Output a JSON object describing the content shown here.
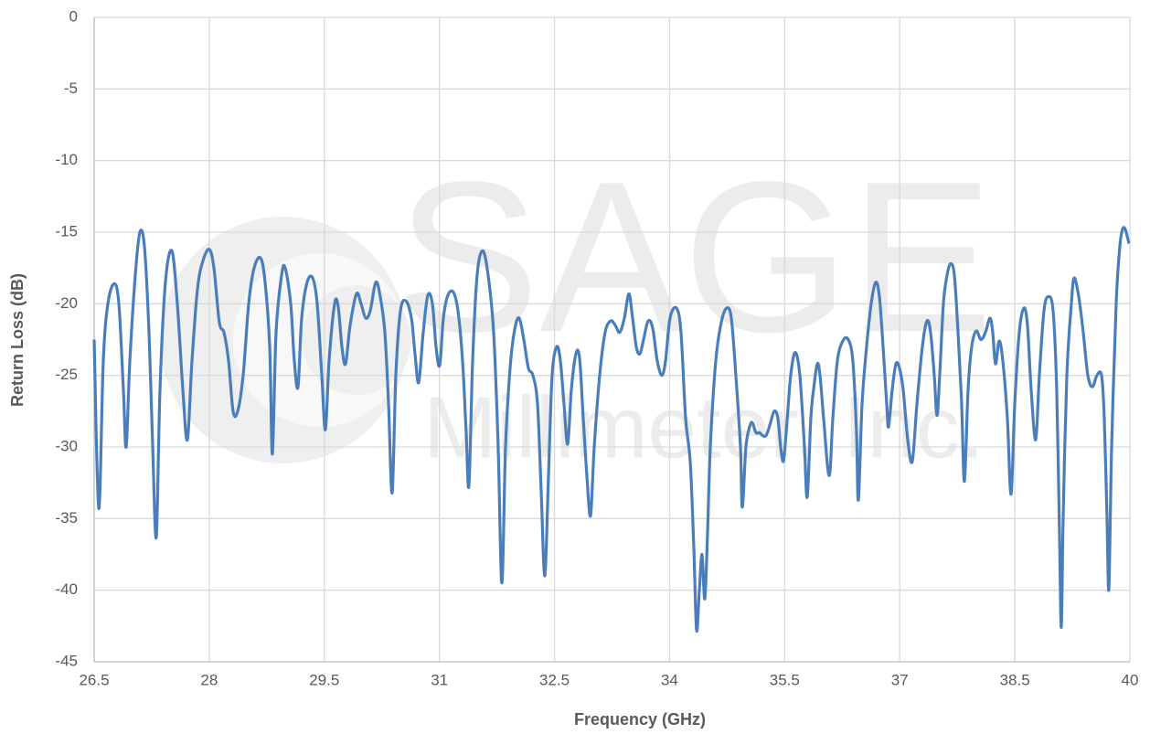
{
  "chart_data": {
    "type": "line",
    "watermark": [
      "SAGE",
      "Millimeter, Inc."
    ],
    "x_label": "Frequency (GHz)",
    "y_label": "Return Loss (dB)",
    "xlim": [
      26.5,
      40
    ],
    "xticks": [
      26.5,
      28,
      29.5,
      31,
      32.5,
      34,
      35.5,
      37,
      38.5,
      40
    ],
    "ylim": [
      -45,
      0
    ],
    "yticks": [
      0,
      -5,
      -10,
      -15,
      -20,
      -25,
      -30,
      -35,
      -40,
      -45
    ],
    "grid": true,
    "series": [
      {
        "color": "#4a7ebb",
        "x": [
          26.5,
          26.56,
          26.619,
          26.679,
          26.762,
          26.822,
          26.881,
          26.917,
          26.965,
          27.036,
          27.096,
          27.155,
          27.215,
          27.263,
          27.31,
          27.358,
          27.429,
          27.513,
          27.584,
          27.656,
          27.715,
          27.775,
          27.846,
          27.918,
          28.001,
          28.061,
          28.132,
          28.192,
          28.252,
          28.311,
          28.371,
          28.442,
          28.514,
          28.585,
          28.669,
          28.728,
          28.788,
          28.823,
          28.871,
          28.943,
          28.99,
          29.062,
          29.109,
          29.157,
          29.205,
          29.276,
          29.348,
          29.407,
          29.467,
          29.514,
          29.562,
          29.634,
          29.681,
          29.729,
          29.777,
          29.836,
          29.92,
          29.979,
          30.039,
          30.098,
          30.17,
          30.229,
          30.289,
          30.337,
          30.384,
          30.432,
          30.492,
          30.563,
          30.635,
          30.682,
          30.73,
          30.789,
          30.849,
          30.909,
          30.956,
          31.004,
          31.052,
          31.111,
          31.183,
          31.242,
          31.302,
          31.349,
          31.385,
          31.433,
          31.492,
          31.564,
          31.635,
          31.707,
          31.766,
          31.814,
          31.862,
          31.921,
          31.981,
          32.04,
          32.1,
          32.16,
          32.219,
          32.279,
          32.326,
          32.374,
          32.422,
          32.469,
          32.529,
          32.577,
          32.624,
          32.672,
          32.72,
          32.779,
          32.827,
          32.875,
          32.922,
          32.97,
          33.018,
          33.089,
          33.16,
          33.232,
          33.292,
          33.351,
          33.411,
          33.47,
          33.518,
          33.566,
          33.613,
          33.661,
          33.72,
          33.78,
          33.84,
          33.899,
          33.947,
          34.006,
          34.09,
          34.149,
          34.209,
          34.269,
          34.316,
          34.352,
          34.388,
          34.423,
          34.459,
          34.495,
          34.531,
          34.602,
          34.674,
          34.745,
          34.805,
          34.864,
          34.924,
          34.948,
          34.995,
          35.043,
          35.079,
          35.126,
          35.174,
          35.21,
          35.258,
          35.305,
          35.365,
          35.412,
          35.448,
          35.484,
          35.52,
          35.579,
          35.639,
          35.698,
          35.758,
          35.794,
          35.841,
          35.877,
          35.925,
          35.961,
          36.008,
          36.08,
          36.128,
          36.187,
          36.258,
          36.33,
          36.389,
          36.437,
          36.461,
          36.509,
          36.568,
          36.628,
          36.687,
          36.735,
          36.783,
          36.83,
          36.854,
          36.902,
          36.95,
          36.997,
          37.045,
          37.104,
          37.164,
          37.224,
          37.295,
          37.355,
          37.402,
          37.45,
          37.486,
          37.521,
          37.569,
          37.617,
          37.664,
          37.712,
          37.76,
          37.807,
          37.843,
          37.891,
          37.938,
          37.998,
          38.058,
          38.117,
          38.177,
          38.212,
          38.248,
          38.296,
          38.344,
          38.403,
          38.451,
          38.499,
          38.558,
          38.618,
          38.665,
          38.713,
          38.772,
          38.82,
          38.88,
          38.939,
          38.999,
          39.046,
          39.082,
          39.106,
          39.13,
          39.178,
          39.237,
          39.273,
          39.333,
          39.392,
          39.452,
          39.511,
          39.571,
          39.631,
          39.666,
          39.702,
          39.726,
          39.762,
          39.821,
          39.869,
          39.904,
          39.94,
          39.988
        ],
        "values": [
          -22.5,
          -34.3,
          -24,
          -20,
          -18.6,
          -20,
          -26,
          -30,
          -24,
          -18,
          -15,
          -16,
          -22,
          -30,
          -36.3,
          -26,
          -18.5,
          -16.3,
          -20,
          -26,
          -29.5,
          -24,
          -19,
          -17,
          -16.2,
          -17.5,
          -21.3,
          -22,
          -24,
          -27.5,
          -27.5,
          -25,
          -20,
          -17.5,
          -16.8,
          -18.5,
          -23,
          -30.5,
          -22,
          -18,
          -17.5,
          -20,
          -24,
          -25.8,
          -21,
          -18.5,
          -18.2,
          -20,
          -25,
          -28.8,
          -24,
          -20,
          -20.2,
          -23,
          -24.2,
          -21.5,
          -19.3,
          -20,
          -21,
          -20.5,
          -18.5,
          -19.5,
          -22,
          -27,
          -33.2,
          -25,
          -20.5,
          -19.8,
          -21,
          -23.5,
          -25.5,
          -22,
          -19.4,
          -20,
          -23,
          -24.3,
          -21,
          -19.4,
          -19.2,
          -20.5,
          -24,
          -29,
          -32.7,
          -24,
          -18,
          -16.3,
          -18,
          -22,
          -30,
          -39.5,
          -30,
          -24.5,
          -21.8,
          -21,
          -22.5,
          -24.5,
          -25,
          -27,
          -33,
          -39,
          -32,
          -25,
          -23,
          -24,
          -27,
          -29.8,
          -26,
          -23.5,
          -23.8,
          -28,
          -32,
          -34.8,
          -30,
          -25,
          -22,
          -21.2,
          -21.5,
          -22,
          -21,
          -19.3,
          -21,
          -23,
          -23.5,
          -22.5,
          -21.2,
          -21.7,
          -24,
          -25,
          -24,
          -21,
          -20.3,
          -22,
          -28,
          -31,
          -37,
          -42.8,
          -40,
          -37.5,
          -40.6,
          -36,
          -30,
          -24,
          -21.3,
          -20.3,
          -21,
          -25,
          -30,
          -34.2,
          -30,
          -28.6,
          -28.3,
          -29,
          -29,
          -29.2,
          -29.2,
          -28.5,
          -27.5,
          -28,
          -30,
          -31,
          -29,
          -25,
          -23.4,
          -25,
          -30,
          -33.5,
          -28,
          -26,
          -24.2,
          -25,
          -28,
          -32,
          -28,
          -24,
          -22.6,
          -22.5,
          -24,
          -29,
          -33.7,
          -27,
          -23,
          -20,
          -18.5,
          -19.5,
          -23,
          -27,
          -28.6,
          -26,
          -24.2,
          -24.5,
          -26,
          -29.5,
          -31,
          -27,
          -23,
          -21.2,
          -22,
          -25,
          -27.8,
          -25,
          -20,
          -18,
          -17.2,
          -18,
          -22,
          -27,
          -32.4,
          -26,
          -23,
          -21.9,
          -22.5,
          -22,
          -21,
          -22,
          -24.2,
          -22.6,
          -24,
          -28,
          -33.3,
          -27,
          -22,
          -20.3,
          -21.5,
          -26,
          -29.5,
          -25,
          -20.5,
          -19.5,
          -20.5,
          -26,
          -36,
          -42.6,
          -35,
          -25,
          -20,
          -18.2,
          -19.5,
          -22,
          -25,
          -25.8,
          -25,
          -25,
          -28,
          -35,
          -39.9,
          -30,
          -20,
          -16,
          -14.8,
          -14.8,
          -15.8
        ]
      }
    ]
  }
}
